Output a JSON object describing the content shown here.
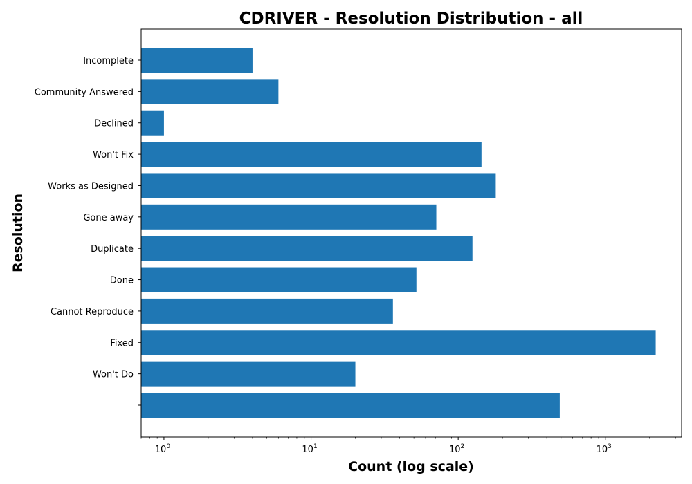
{
  "chart_data": {
    "type": "bar",
    "orientation": "horizontal",
    "title": "CDRIVER - Resolution Distribution - all",
    "xlabel": "Count (log scale)",
    "ylabel": "Resolution",
    "x_scale": "log",
    "xlim": [
      0.7,
      3300
    ],
    "x_ticks": [
      {
        "value": 1,
        "base": "10",
        "exp": "0"
      },
      {
        "value": 10,
        "base": "10",
        "exp": "1"
      },
      {
        "value": 100,
        "base": "10",
        "exp": "2"
      },
      {
        "value": 1000,
        "base": "10",
        "exp": "3"
      }
    ],
    "categories": [
      "",
      "Won't Do",
      "Fixed",
      "Cannot Reproduce",
      "Done",
      "Duplicate",
      "Gone away",
      "Works as Designed",
      "Won't Fix",
      "Declined",
      "Community Answered",
      "Incomplete"
    ],
    "values": [
      490,
      20,
      2200,
      36,
      52,
      125,
      71,
      180,
      144,
      1,
      6,
      4
    ],
    "bar_color": "#1f77b4",
    "grid": false,
    "legend": "none"
  }
}
